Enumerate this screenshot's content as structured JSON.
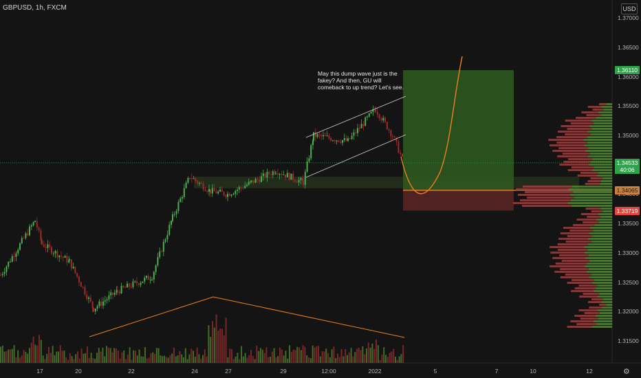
{
  "header": {
    "symbol": "GBPUSD, 1h, FXCM",
    "currency": "USD"
  },
  "annotation": {
    "text": "May this dump wave just is the fakey? And then, GU will comeback to up trend? Let's see."
  },
  "price_axis": {
    "labels": [
      "1.37000",
      "1.36500",
      "1.36000",
      "1.35500",
      "1.35000",
      "1.34500",
      "1.34000",
      "1.33500",
      "1.33000",
      "1.32500",
      "1.32000",
      "1.31500"
    ],
    "target_badge": "1.36110",
    "current_badge": "1.34533",
    "countdown": "40:06",
    "entry_badge": "1.34065",
    "stop_badge": "1.33719"
  },
  "time_axis": {
    "labels": [
      "17",
      "20",
      "22",
      "24",
      "27",
      "29",
      "12:00",
      "2022",
      "5",
      "7",
      "10",
      "12"
    ]
  },
  "colors": {
    "up": "#4caf50",
    "down": "#9e2b2b",
    "target_zone": "#2e5a1f",
    "stop_zone": "#5a2424",
    "projection": "#f0811f",
    "entry_line": "#e08a3a"
  },
  "icons": {
    "settings": "gear-icon"
  },
  "chart_data": {
    "type": "candlestick",
    "symbol": "GBPUSD",
    "interval": "1h",
    "ylim": [
      1.3125,
      1.3725
    ],
    "key_levels": {
      "target": 1.3611,
      "current": 1.34533,
      "entry": 1.34065,
      "stop": 1.33719
    },
    "price_path": [
      {
        "x": "16",
        "y": 1.3262
      },
      {
        "x": "17",
        "y": 1.3355
      },
      {
        "x": "17",
        "y": 1.3315
      },
      {
        "x": "18",
        "y": 1.3285
      },
      {
        "x": "20",
        "y": 1.3205
      },
      {
        "x": "21",
        "y": 1.3235
      },
      {
        "x": "22",
        "y": 1.326
      },
      {
        "x": "23",
        "y": 1.336
      },
      {
        "x": "24",
        "y": 1.343
      },
      {
        "x": "26",
        "y": 1.3405
      },
      {
        "x": "27",
        "y": 1.34
      },
      {
        "x": "28",
        "y": 1.342
      },
      {
        "x": "29",
        "y": 1.344
      },
      {
        "x": "30",
        "y": 1.342
      },
      {
        "x": "30",
        "y": 1.35
      },
      {
        "x": "31",
        "y": 1.349
      },
      {
        "x": "2022",
        "y": 1.3545
      },
      {
        "x": "3",
        "y": 1.35
      },
      {
        "x": "3",
        "y": 1.3453
      }
    ],
    "projection": [
      {
        "x": "3",
        "y": 1.3455
      },
      {
        "x": "4",
        "y": 1.3402
      },
      {
        "x": "5",
        "y": 1.342
      },
      {
        "x": "6",
        "y": 1.348
      },
      {
        "x": "7",
        "y": 1.358
      },
      {
        "x": "7",
        "y": 1.3675
      }
    ],
    "volume_trend": [
      "rising into 25",
      "falling into 2022"
    ],
    "volume_profile": "right-side horizontal histogram"
  }
}
